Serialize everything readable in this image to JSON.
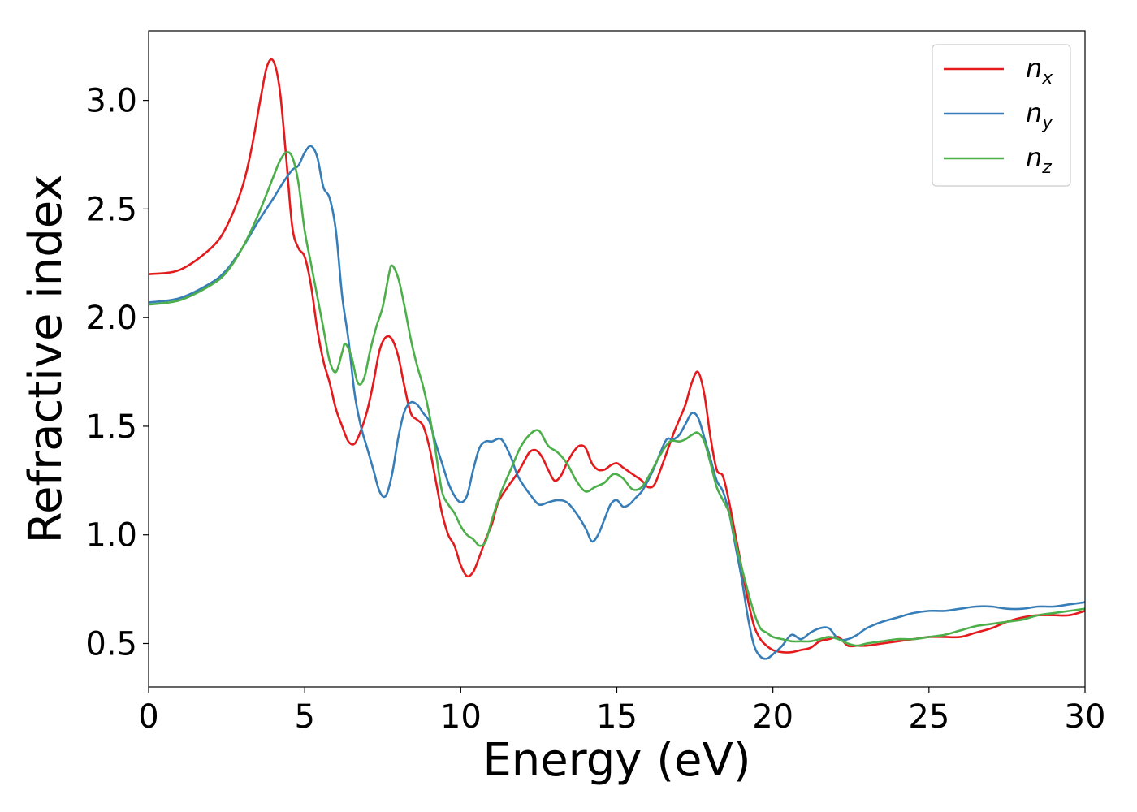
{
  "chart_data": {
    "type": "line",
    "title": "",
    "xlabel": "Energy (eV)",
    "ylabel": "Refractive index",
    "xlim": [
      0,
      30
    ],
    "ylim": [
      0.3,
      3.32
    ],
    "grid": false,
    "legend_position": "top-right",
    "x_ticks": [
      "0",
      "5",
      "10",
      "15",
      "20",
      "25",
      "30"
    ],
    "y_ticks": [
      "0.5",
      "1.0",
      "1.5",
      "2.0",
      "2.5",
      "3.0"
    ],
    "series": [
      {
        "name": "n_x",
        "label_base": "n",
        "label_sub": "x",
        "color": "#e41a1c",
        "x": [
          0,
          1,
          2,
          2.5,
          3,
          3.3,
          3.6,
          3.8,
          4.0,
          4.2,
          4.4,
          4.6,
          4.8,
          5.0,
          5.2,
          5.4,
          5.6,
          5.8,
          6.0,
          6.2,
          6.4,
          6.6,
          6.8,
          7.0,
          7.2,
          7.4,
          7.6,
          7.8,
          8.0,
          8.2,
          8.4,
          8.6,
          8.8,
          9.0,
          9.2,
          9.4,
          9.6,
          9.8,
          10.0,
          10.2,
          10.4,
          10.6,
          10.8,
          11.0,
          11.2,
          11.5,
          11.8,
          12.0,
          12.2,
          12.4,
          12.6,
          12.8,
          13.0,
          13.2,
          13.4,
          13.6,
          13.8,
          14.0,
          14.2,
          14.4,
          14.6,
          14.8,
          15.0,
          15.2,
          15.4,
          15.6,
          15.8,
          16.0,
          16.2,
          16.4,
          16.6,
          16.8,
          17.0,
          17.2,
          17.4,
          17.6,
          17.8,
          18.0,
          18.2,
          18.4,
          18.6,
          18.8,
          19.0,
          19.2,
          19.4,
          19.6,
          19.8,
          20.0,
          20.3,
          20.6,
          20.9,
          21.2,
          21.5,
          21.8,
          22.1,
          22.4,
          22.7,
          23.0,
          23.5,
          24.0,
          24.5,
          25.0,
          25.5,
          26.0,
          26.5,
          27.0,
          27.5,
          28.0,
          28.5,
          29.0,
          29.5,
          30.0
        ],
        "y": [
          2.2,
          2.22,
          2.32,
          2.42,
          2.6,
          2.78,
          3.02,
          3.16,
          3.18,
          3.05,
          2.75,
          2.42,
          2.32,
          2.28,
          2.15,
          1.95,
          1.8,
          1.7,
          1.58,
          1.5,
          1.43,
          1.42,
          1.48,
          1.57,
          1.7,
          1.85,
          1.91,
          1.9,
          1.82,
          1.68,
          1.56,
          1.53,
          1.5,
          1.4,
          1.25,
          1.1,
          1.0,
          0.95,
          0.86,
          0.81,
          0.83,
          0.9,
          0.98,
          1.05,
          1.15,
          1.22,
          1.28,
          1.33,
          1.38,
          1.39,
          1.36,
          1.3,
          1.25,
          1.27,
          1.33,
          1.38,
          1.41,
          1.4,
          1.33,
          1.3,
          1.3,
          1.32,
          1.33,
          1.31,
          1.29,
          1.27,
          1.25,
          1.22,
          1.23,
          1.3,
          1.38,
          1.46,
          1.53,
          1.6,
          1.7,
          1.75,
          1.65,
          1.45,
          1.3,
          1.27,
          1.15,
          1.0,
          0.85,
          0.7,
          0.58,
          0.52,
          0.49,
          0.47,
          0.46,
          0.46,
          0.47,
          0.48,
          0.51,
          0.52,
          0.53,
          0.49,
          0.49,
          0.49,
          0.5,
          0.51,
          0.52,
          0.53,
          0.53,
          0.53,
          0.55,
          0.57,
          0.6,
          0.62,
          0.63,
          0.63,
          0.63,
          0.65
        ]
      },
      {
        "name": "n_y",
        "label_base": "n",
        "label_sub": "y",
        "color": "#377eb8",
        "x": [
          0,
          1,
          2,
          2.5,
          3,
          3.5,
          4.0,
          4.3,
          4.6,
          4.8,
          5.0,
          5.2,
          5.4,
          5.6,
          5.8,
          6.0,
          6.2,
          6.4,
          6.6,
          6.8,
          7.0,
          7.2,
          7.4,
          7.6,
          7.8,
          8.0,
          8.2,
          8.4,
          8.6,
          8.8,
          9.0,
          9.2,
          9.4,
          9.6,
          9.8,
          10.0,
          10.2,
          10.4,
          10.6,
          10.8,
          11.0,
          11.3,
          11.6,
          11.8,
          12.0,
          12.2,
          12.5,
          12.8,
          13.1,
          13.4,
          13.7,
          14.0,
          14.2,
          14.4,
          14.6,
          14.8,
          15.0,
          15.2,
          15.4,
          15.6,
          15.8,
          16.0,
          16.2,
          16.4,
          16.6,
          16.8,
          17.0,
          17.2,
          17.4,
          17.6,
          17.8,
          18.0,
          18.2,
          18.4,
          18.6,
          18.8,
          19.0,
          19.2,
          19.4,
          19.6,
          19.8,
          20.0,
          20.3,
          20.6,
          20.9,
          21.2,
          21.5,
          21.8,
          22.1,
          22.4,
          22.7,
          23.0,
          23.5,
          24.0,
          24.5,
          25.0,
          25.5,
          26.0,
          26.5,
          27.0,
          27.5,
          28.0,
          28.5,
          29.0,
          29.5,
          30.0
        ],
        "y": [
          2.07,
          2.09,
          2.16,
          2.22,
          2.32,
          2.44,
          2.55,
          2.62,
          2.68,
          2.7,
          2.76,
          2.79,
          2.74,
          2.6,
          2.55,
          2.4,
          2.1,
          1.9,
          1.65,
          1.5,
          1.4,
          1.3,
          1.2,
          1.18,
          1.28,
          1.45,
          1.57,
          1.61,
          1.6,
          1.56,
          1.52,
          1.42,
          1.33,
          1.24,
          1.18,
          1.15,
          1.18,
          1.3,
          1.4,
          1.43,
          1.43,
          1.44,
          1.36,
          1.28,
          1.23,
          1.19,
          1.14,
          1.15,
          1.16,
          1.15,
          1.1,
          1.03,
          0.97,
          1.0,
          1.07,
          1.14,
          1.16,
          1.13,
          1.14,
          1.17,
          1.2,
          1.25,
          1.31,
          1.38,
          1.44,
          1.44,
          1.46,
          1.51,
          1.56,
          1.54,
          1.45,
          1.35,
          1.25,
          1.2,
          1.1,
          0.95,
          0.8,
          0.62,
          0.49,
          0.44,
          0.43,
          0.45,
          0.49,
          0.54,
          0.52,
          0.55,
          0.57,
          0.57,
          0.52,
          0.52,
          0.54,
          0.57,
          0.6,
          0.62,
          0.64,
          0.65,
          0.65,
          0.66,
          0.67,
          0.67,
          0.66,
          0.66,
          0.67,
          0.67,
          0.68,
          0.69
        ]
      },
      {
        "name": "n_z",
        "label_base": "n",
        "label_sub": "z",
        "color": "#4daf4a",
        "x": [
          0,
          1,
          2,
          2.5,
          3,
          3.5,
          4.0,
          4.2,
          4.4,
          4.6,
          4.8,
          5.0,
          5.2,
          5.4,
          5.6,
          5.8,
          6.0,
          6.2,
          6.3,
          6.5,
          6.7,
          6.9,
          7.1,
          7.3,
          7.5,
          7.7,
          7.8,
          8.0,
          8.2,
          8.4,
          8.6,
          8.8,
          9.0,
          9.2,
          9.4,
          9.6,
          9.8,
          10.0,
          10.2,
          10.4,
          10.6,
          10.8,
          11.0,
          11.3,
          11.6,
          11.9,
          12.2,
          12.5,
          12.8,
          13.1,
          13.4,
          13.7,
          14.0,
          14.3,
          14.6,
          14.9,
          15.2,
          15.5,
          15.8,
          16.1,
          16.4,
          16.7,
          17.0,
          17.2,
          17.4,
          17.6,
          17.8,
          18.0,
          18.2,
          18.4,
          18.6,
          18.8,
          19.0,
          19.2,
          19.4,
          19.6,
          19.8,
          20.0,
          20.3,
          20.6,
          20.9,
          21.2,
          21.5,
          21.8,
          22.1,
          22.4,
          22.7,
          23.0,
          23.5,
          24.0,
          24.5,
          25.0,
          25.5,
          26.0,
          26.5,
          27.0,
          27.5,
          28.0,
          28.5,
          29.0,
          29.5,
          30.0
        ],
        "y": [
          2.06,
          2.08,
          2.15,
          2.21,
          2.32,
          2.47,
          2.65,
          2.72,
          2.76,
          2.74,
          2.62,
          2.4,
          2.25,
          2.1,
          1.95,
          1.8,
          1.75,
          1.84,
          1.88,
          1.82,
          1.7,
          1.72,
          1.85,
          1.96,
          2.05,
          2.2,
          2.24,
          2.18,
          2.05,
          1.9,
          1.78,
          1.68,
          1.55,
          1.38,
          1.2,
          1.14,
          1.1,
          1.04,
          1.0,
          0.98,
          0.95,
          0.97,
          1.07,
          1.2,
          1.3,
          1.4,
          1.46,
          1.48,
          1.41,
          1.38,
          1.33,
          1.25,
          1.2,
          1.22,
          1.24,
          1.28,
          1.26,
          1.21,
          1.22,
          1.29,
          1.37,
          1.43,
          1.43,
          1.44,
          1.46,
          1.47,
          1.43,
          1.33,
          1.22,
          1.16,
          1.1,
          0.97,
          0.85,
          0.74,
          0.64,
          0.57,
          0.55,
          0.53,
          0.52,
          0.51,
          0.51,
          0.51,
          0.52,
          0.53,
          0.52,
          0.5,
          0.49,
          0.5,
          0.51,
          0.52,
          0.52,
          0.53,
          0.54,
          0.56,
          0.58,
          0.59,
          0.6,
          0.61,
          0.63,
          0.64,
          0.65,
          0.66
        ]
      }
    ]
  }
}
